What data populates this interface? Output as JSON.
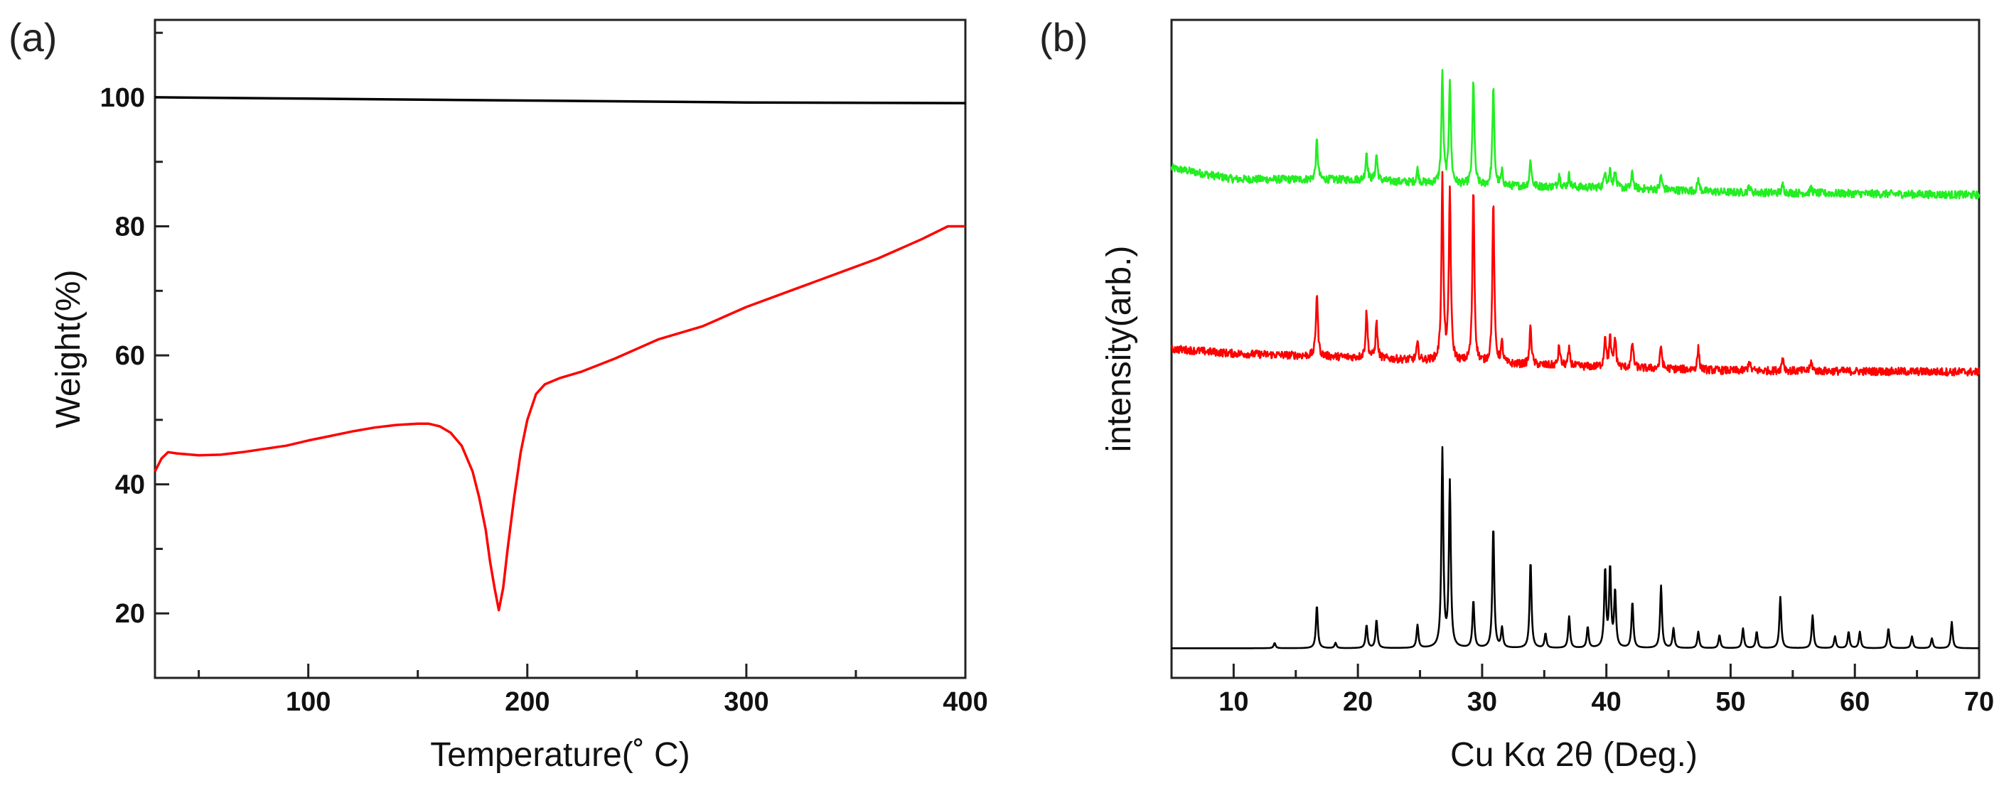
{
  "chart_data": [
    {
      "panel": "(a)",
      "type": "line",
      "xlabel": "Temperature(˚ C)",
      "ylabel": "Weight(%)",
      "xlim": [
        30,
        400
      ],
      "ylim": [
        10,
        112
      ],
      "xticks": [
        100,
        200,
        300,
        400
      ],
      "yticks": [
        20,
        40,
        60,
        80,
        100
      ],
      "series": [
        {
          "name": "black",
          "color": "#000000",
          "points": [
            [
              30,
              100
            ],
            [
              100,
              99.8
            ],
            [
              200,
              99.5
            ],
            [
              300,
              99.2
            ],
            [
              400,
              99.1
            ]
          ]
        },
        {
          "name": "red",
          "color": "#ff0000",
          "points": [
            [
              30,
              42
            ],
            [
              33,
              44
            ],
            [
              36,
              45
            ],
            [
              40,
              44.8
            ],
            [
              50,
              44.5
            ],
            [
              60,
              44.6
            ],
            [
              70,
              45
            ],
            [
              80,
              45.5
            ],
            [
              90,
              46
            ],
            [
              100,
              46.8
            ],
            [
              110,
              47.5
            ],
            [
              120,
              48.2
            ],
            [
              130,
              48.8
            ],
            [
              140,
              49.2
            ],
            [
              150,
              49.4
            ],
            [
              155,
              49.4
            ],
            [
              160,
              49
            ],
            [
              165,
              48
            ],
            [
              170,
              46
            ],
            [
              175,
              42
            ],
            [
              178,
              38
            ],
            [
              181,
              33
            ],
            [
              183,
              28
            ],
            [
              185,
              24
            ],
            [
              187,
              20.5
            ],
            [
              189,
              24
            ],
            [
              191,
              30
            ],
            [
              194,
              38
            ],
            [
              197,
              45
            ],
            [
              200,
              50
            ],
            [
              204,
              54
            ],
            [
              208,
              55.5
            ],
            [
              215,
              56.5
            ],
            [
              225,
              57.5
            ],
            [
              240,
              59.5
            ],
            [
              260,
              62.5
            ],
            [
              280,
              64.5
            ],
            [
              300,
              67.5
            ],
            [
              320,
              70
            ],
            [
              340,
              72.5
            ],
            [
              360,
              75
            ],
            [
              380,
              78
            ],
            [
              392,
              80
            ],
            [
              400,
              80
            ]
          ]
        }
      ]
    },
    {
      "panel": "(b)",
      "type": "line",
      "xlabel": "Cu Kα 2θ (Deg.)",
      "ylabel": "intensity(arb.)",
      "xlim": [
        5,
        70
      ],
      "xticks": [
        10,
        20,
        30,
        40,
        50,
        60,
        70
      ],
      "series": [
        {
          "name": "green",
          "color": "#22ee22",
          "baseline": [
            [
              5,
              0.775
            ],
            [
              10,
              0.758
            ],
            [
              20,
              0.757
            ],
            [
              30,
              0.748
            ],
            [
              40,
              0.745
            ],
            [
              50,
              0.738
            ],
            [
              70,
              0.734
            ]
          ],
          "peaks": [
            [
              16.7,
              0.06
            ],
            [
              20.7,
              0.043
            ],
            [
              21.5,
              0.04
            ],
            [
              24.8,
              0.02
            ],
            [
              26.8,
              0.168
            ],
            [
              27.4,
              0.158
            ],
            [
              29.3,
              0.16
            ],
            [
              30.9,
              0.148
            ],
            [
              31.6,
              0.02
            ],
            [
              33.9,
              0.041
            ],
            [
              36.2,
              0.02
            ],
            [
              37.0,
              0.018
            ],
            [
              39.9,
              0.027
            ],
            [
              40.3,
              0.027
            ],
            [
              40.7,
              0.025
            ],
            [
              42.1,
              0.025
            ],
            [
              44.4,
              0.022
            ],
            [
              47.4,
              0.018
            ],
            [
              51.5,
              0.01
            ],
            [
              54.2,
              0.012
            ],
            [
              56.5,
              0.008
            ]
          ]
        },
        {
          "name": "red",
          "color": "#ff0000",
          "baseline": [
            [
              5,
              0.5
            ],
            [
              10,
              0.493
            ],
            [
              20,
              0.487
            ],
            [
              30,
              0.478
            ],
            [
              40,
              0.472
            ],
            [
              50,
              0.467
            ],
            [
              70,
              0.465
            ]
          ],
          "peaks": [
            [
              16.7,
              0.097
            ],
            [
              20.7,
              0.07
            ],
            [
              21.5,
              0.055
            ],
            [
              24.8,
              0.025
            ],
            [
              26.8,
              0.278
            ],
            [
              27.4,
              0.262
            ],
            [
              29.3,
              0.268
            ],
            [
              30.9,
              0.245
            ],
            [
              31.6,
              0.03
            ],
            [
              33.9,
              0.06
            ],
            [
              36.2,
              0.03
            ],
            [
              37.0,
              0.025
            ],
            [
              39.9,
              0.048
            ],
            [
              40.3,
              0.043
            ],
            [
              40.7,
              0.045
            ],
            [
              42.1,
              0.04
            ],
            [
              44.4,
              0.035
            ],
            [
              47.4,
              0.032
            ],
            [
              51.5,
              0.015
            ],
            [
              54.2,
              0.022
            ],
            [
              56.5,
              0.014
            ]
          ]
        },
        {
          "name": "black",
          "color": "#000000",
          "baseline": [
            [
              5,
              0.045
            ],
            [
              70,
              0.045
            ]
          ],
          "peaks": [
            [
              13.3,
              0.008
            ],
            [
              16.7,
              0.065
            ],
            [
              18.2,
              0.008
            ],
            [
              20.7,
              0.035
            ],
            [
              21.5,
              0.043
            ],
            [
              24.8,
              0.035
            ],
            [
              26.8,
              0.3
            ],
            [
              27.4,
              0.25
            ],
            [
              29.3,
              0.072
            ],
            [
              30.9,
              0.185
            ],
            [
              31.6,
              0.03
            ],
            [
              33.9,
              0.132
            ],
            [
              35.1,
              0.022
            ],
            [
              37.0,
              0.048
            ],
            [
              38.5,
              0.032
            ],
            [
              39.9,
              0.118
            ],
            [
              40.3,
              0.12
            ],
            [
              40.7,
              0.085
            ],
            [
              42.1,
              0.07
            ],
            [
              44.4,
              0.095
            ],
            [
              45.4,
              0.03
            ],
            [
              47.4,
              0.025
            ],
            [
              49.1,
              0.02
            ],
            [
              51.0,
              0.03
            ],
            [
              52.1,
              0.025
            ],
            [
              54.0,
              0.078
            ],
            [
              56.6,
              0.05
            ],
            [
              58.4,
              0.018
            ],
            [
              59.5,
              0.025
            ],
            [
              60.4,
              0.025
            ],
            [
              62.7,
              0.03
            ],
            [
              64.6,
              0.018
            ],
            [
              66.2,
              0.015
            ],
            [
              67.8,
              0.04
            ]
          ]
        }
      ]
    }
  ]
}
